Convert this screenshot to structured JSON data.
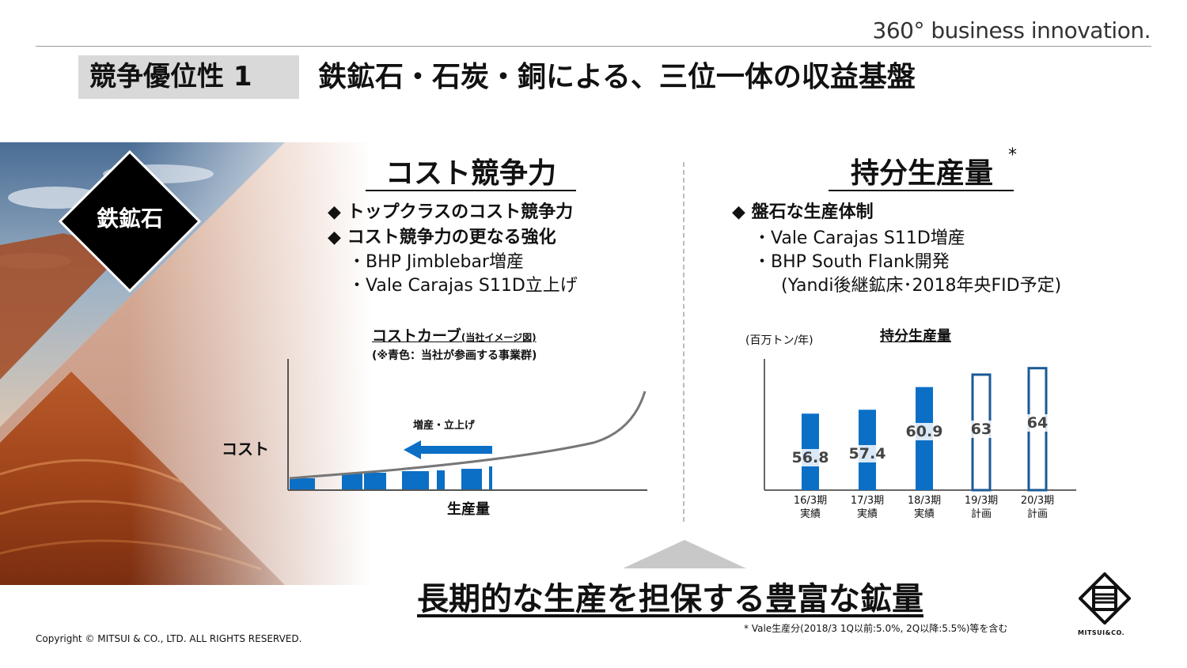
{
  "tagline": "360° business innovation.",
  "header": {
    "badge": "競争優位性 1",
    "title": "鉄鉱石・石炭・銅による、三位一体の収益基盤"
  },
  "hero": {
    "label": "鉄鉱石"
  },
  "cost_section": {
    "title": "コスト競争力",
    "bullets": [
      "◆ トップクラスのコスト競争力",
      "◆ コスト競争力の更なる強化"
    ],
    "subitems": [
      "・BHP Jimblebar増産",
      "・Vale Carajas S11D立上げ"
    ]
  },
  "cost_curve": {
    "title": "コストカーブ",
    "title_note": "(当社イメージ図)",
    "subtitle": "(※青色：当社が参画する事業群)",
    "arrow_label": "増産・立上げ",
    "ylabel": "コスト",
    "xlabel": "生産量"
  },
  "production_section": {
    "title": "持分生産量",
    "asterisk": "*",
    "bullets": [
      "◆ 盤石な生産体制"
    ],
    "subitems": [
      "・Vale Carajas S11D増産",
      "・BHP South Flank開発",
      "(Yandi後継鉱床･2018年央FID予定)"
    ]
  },
  "chart_data": {
    "type": "bar",
    "title": "持分生産量",
    "ylabel": "(百万トン/年)",
    "categories": [
      "16/3期 実績",
      "17/3期 実績",
      "18/3期 実績",
      "19/3期 計画",
      "20/3期 計画"
    ],
    "category_lines": [
      [
        "16/3期",
        "実績"
      ],
      [
        "17/3期",
        "実績"
      ],
      [
        "18/3期",
        "実績"
      ],
      [
        "19/3期",
        "計画"
      ],
      [
        "20/3期",
        "計画"
      ]
    ],
    "values": [
      56.8,
      57.4,
      60.9,
      63,
      64
    ],
    "value_labels": [
      "56.8",
      "57.4",
      "60.9",
      "63",
      "64"
    ],
    "styles": [
      "filled",
      "filled",
      "filled",
      "outline",
      "outline"
    ],
    "ylim": [
      45,
      65
    ],
    "colors": {
      "bar": "#0b6fc6",
      "outline": "#1a5a96"
    }
  },
  "bottom": {
    "title": "長期的な生産を担保する豊富な鉱量"
  },
  "footnote": "* Vale生産分(2018/3 1Q以前:5.0%, 2Q以降:5.5%)等を含む",
  "copyright": "Copyright © MITSUI & CO., LTD. ALL RIGHTS RESERVED.",
  "brand": "MITSUI&CO."
}
